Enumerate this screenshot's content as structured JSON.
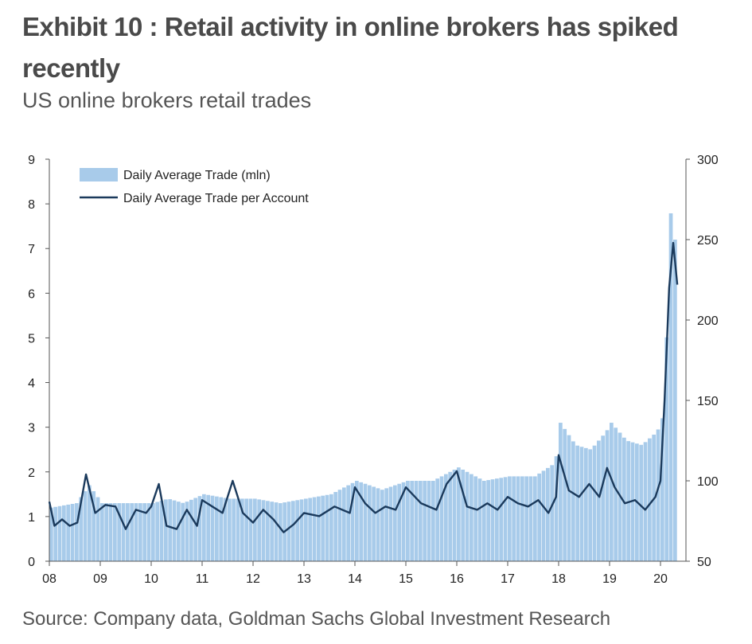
{
  "header": {
    "title": "Exhibit 10 : Retail activity in online brokers has spiked recently",
    "subtitle": "US online brokers retail trades"
  },
  "footer": {
    "source": "Source: Company data, Goldman Sachs Global Investment Research"
  },
  "chart_data": {
    "type": "bar+line",
    "x_tick_labels": [
      "08",
      "09",
      "10",
      "11",
      "12",
      "13",
      "14",
      "15",
      "16",
      "17",
      "18",
      "19",
      "20"
    ],
    "y_left": {
      "ticks": [
        "0",
        "1",
        "2",
        "3",
        "4",
        "5",
        "6",
        "7",
        "8",
        "9"
      ],
      "range": [
        0,
        9
      ]
    },
    "y_right": {
      "ticks": [
        "50",
        "100",
        "150",
        "200",
        "250",
        "300"
      ],
      "range": [
        50,
        300
      ]
    },
    "legend_placement": "top-left",
    "colors": {
      "bar": "#a8cbea",
      "line": "#1b3a5c"
    },
    "series": [
      {
        "name": "Daily Average Trade (mln)",
        "type": "bar",
        "axis": "left",
        "anchor_x": [
          2008.0,
          2008.5,
          2008.75,
          2009.0,
          2009.5,
          2010.0,
          2010.3,
          2010.6,
          2011.0,
          2011.5,
          2012.0,
          2012.5,
          2013.0,
          2013.5,
          2014.0,
          2014.5,
          2015.0,
          2015.5,
          2016.0,
          2016.5,
          2017.0,
          2017.5,
          2017.9,
          2018.0,
          2018.3,
          2018.6,
          2018.9,
          2019.0,
          2019.3,
          2019.6,
          2019.9,
          2020.0,
          2020.08,
          2020.17,
          2020.25,
          2020.33
        ],
        "anchor_y": [
          1.2,
          1.3,
          1.7,
          1.3,
          1.3,
          1.3,
          1.4,
          1.3,
          1.5,
          1.4,
          1.4,
          1.3,
          1.4,
          1.5,
          1.8,
          1.6,
          1.8,
          1.8,
          2.1,
          1.8,
          1.9,
          1.9,
          2.2,
          3.1,
          2.6,
          2.5,
          2.9,
          3.1,
          2.7,
          2.6,
          2.9,
          3.2,
          4.9,
          7.9,
          7.2,
          7.1
        ]
      },
      {
        "name": "Daily Average Trade per Account",
        "type": "line",
        "axis": "right",
        "anchor_x": [
          2008.0,
          2008.1,
          2008.25,
          2008.4,
          2008.55,
          2008.72,
          2008.9,
          2009.1,
          2009.3,
          2009.5,
          2009.7,
          2009.9,
          2010.0,
          2010.15,
          2010.3,
          2010.5,
          2010.7,
          2010.9,
          2011.0,
          2011.2,
          2011.4,
          2011.6,
          2011.8,
          2012.0,
          2012.2,
          2012.4,
          2012.6,
          2012.8,
          2013.0,
          2013.3,
          2013.6,
          2013.9,
          2014.0,
          2014.2,
          2014.4,
          2014.6,
          2014.8,
          2015.0,
          2015.3,
          2015.6,
          2015.8,
          2016.0,
          2016.2,
          2016.4,
          2016.6,
          2016.8,
          2017.0,
          2017.2,
          2017.4,
          2017.6,
          2017.8,
          2017.95,
          2018.0,
          2018.2,
          2018.4,
          2018.6,
          2018.8,
          2018.95,
          2019.1,
          2019.3,
          2019.5,
          2019.7,
          2019.9,
          2020.0,
          2020.08,
          2020.17,
          2020.25,
          2020.33
        ],
        "anchor_y": [
          87,
          72,
          76,
          72,
          74,
          104,
          80,
          85,
          84,
          70,
          82,
          80,
          84,
          98,
          72,
          70,
          82,
          72,
          88,
          84,
          80,
          100,
          80,
          74,
          82,
          76,
          68,
          73,
          80,
          78,
          84,
          80,
          96,
          86,
          80,
          84,
          82,
          96,
          86,
          82,
          98,
          106,
          84,
          82,
          86,
          82,
          90,
          86,
          84,
          88,
          80,
          90,
          116,
          94,
          90,
          98,
          90,
          108,
          96,
          86,
          88,
          82,
          90,
          100,
          150,
          220,
          248,
          222
        ]
      }
    ]
  }
}
